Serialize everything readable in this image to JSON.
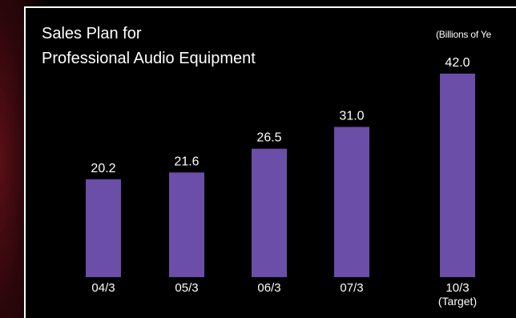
{
  "chart_data": {
    "type": "bar",
    "title_lines": [
      "Sales Plan for",
      "Professional Audio Equipment"
    ],
    "unit_label": "(Billions of Ye",
    "categories": [
      "04/3",
      "05/3",
      "06/3",
      "07/3",
      "10/3"
    ],
    "category_sublabels": [
      "",
      "",
      "",
      "",
      "(Target)"
    ],
    "values": [
      20.2,
      21.6,
      26.5,
      31.0,
      42.0
    ],
    "value_labels": [
      "20.2",
      "21.6",
      "26.5",
      "31.0",
      "42.0"
    ],
    "ylim": [
      0,
      45
    ],
    "grid": false,
    "bar_color": "#6a4ea8"
  },
  "colors": {
    "background": "#000000",
    "text": "#ffffff",
    "frame": "#ffffff",
    "bar": "#6a4ea8"
  }
}
